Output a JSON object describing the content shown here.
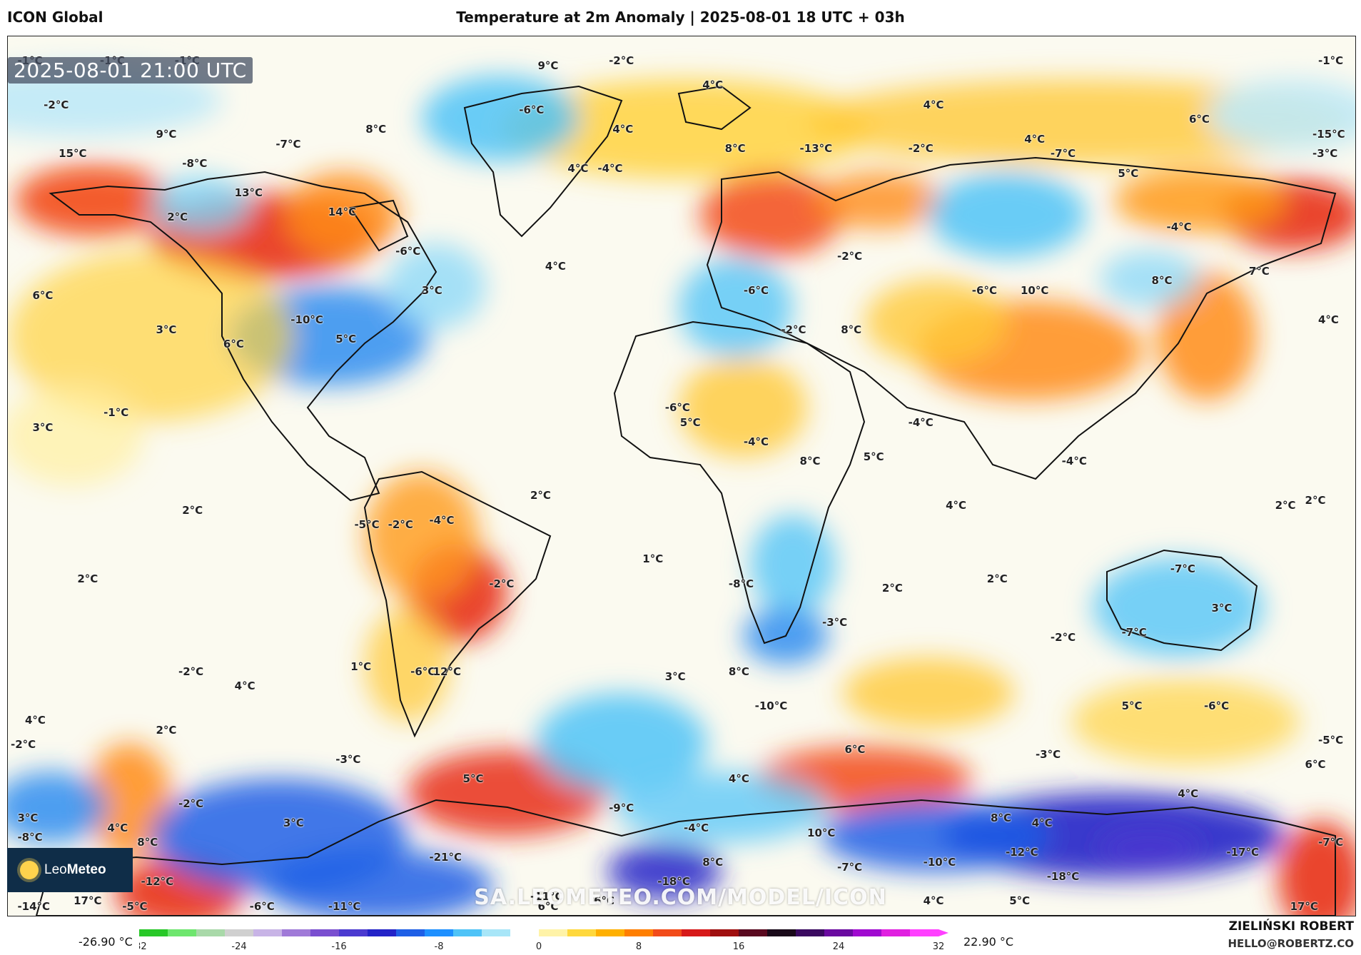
{
  "header": {
    "model": "ICON Global",
    "title": "Temperature at 2m Anomaly | 2025-08-01 18 UTC + 03h"
  },
  "map": {
    "valid_time": "2025-08-01 21:00 UTC",
    "watermark": "SA.LEOMETEO.COM/MODEL/ICON",
    "labels": [
      {
        "text": "-1°C",
        "lon": -174,
        "lat": 85
      },
      {
        "text": "-1°C",
        "lon": -152,
        "lat": 85
      },
      {
        "text": "-1°C",
        "lon": -132,
        "lat": 85
      },
      {
        "text": "-1°C",
        "lon": 174,
        "lat": 85
      },
      {
        "text": "-2°C",
        "lon": -167,
        "lat": 76
      },
      {
        "text": "9°C",
        "lon": -35,
        "lat": 84
      },
      {
        "text": "-2°C",
        "lon": -16,
        "lat": 85
      },
      {
        "text": "4°C",
        "lon": 9,
        "lat": 80
      },
      {
        "text": "-6°C",
        "lon": -40,
        "lat": 75
      },
      {
        "text": "4°C",
        "lon": 68,
        "lat": 76
      },
      {
        "text": "4°C",
        "lon": -15,
        "lat": 71
      },
      {
        "text": "4°C",
        "lon": -27,
        "lat": 63
      },
      {
        "text": "-4°C",
        "lon": -19,
        "lat": 63
      },
      {
        "text": "15°C",
        "lon": -163,
        "lat": 66
      },
      {
        "text": "9°C",
        "lon": -137,
        "lat": 70
      },
      {
        "text": "-8°C",
        "lon": -130,
        "lat": 64
      },
      {
        "text": "-7°C",
        "lon": -105,
        "lat": 68
      },
      {
        "text": "8°C",
        "lon": -81,
        "lat": 71
      },
      {
        "text": "13°C",
        "lon": -116,
        "lat": 58
      },
      {
        "text": "14°C",
        "lon": -91,
        "lat": 54
      },
      {
        "text": "2°C",
        "lon": -134,
        "lat": 53
      },
      {
        "text": "-6°C",
        "lon": -73,
        "lat": 46
      },
      {
        "text": "6°C",
        "lon": -170,
        "lat": 37
      },
      {
        "text": "3°C",
        "lon": -137,
        "lat": 30
      },
      {
        "text": "-10°C",
        "lon": -101,
        "lat": 32
      },
      {
        "text": "3°C",
        "lon": -66,
        "lat": 38
      },
      {
        "text": "6°C",
        "lon": -119,
        "lat": 27
      },
      {
        "text": "5°C",
        "lon": -89,
        "lat": 28
      },
      {
        "text": "4°C",
        "lon": -33,
        "lat": 43
      },
      {
        "text": "8°C",
        "lon": 15,
        "lat": 67
      },
      {
        "text": "-13°C",
        "lon": 35,
        "lat": 67
      },
      {
        "text": "-2°C",
        "lon": 64,
        "lat": 67
      },
      {
        "text": "4°C",
        "lon": 95,
        "lat": 69
      },
      {
        "text": "-7°C",
        "lon": 102,
        "lat": 66
      },
      {
        "text": "6°C",
        "lon": 139,
        "lat": 73
      },
      {
        "text": "-15°C",
        "lon": 172,
        "lat": 70
      },
      {
        "text": "-3°C",
        "lon": 172,
        "lat": 66
      },
      {
        "text": "5°C",
        "lon": 120,
        "lat": 62
      },
      {
        "text": "-4°C",
        "lon": 133,
        "lat": 51
      },
      {
        "text": "-2°C",
        "lon": 45,
        "lat": 45
      },
      {
        "text": "-6°C",
        "lon": 20,
        "lat": 38
      },
      {
        "text": "-6°C",
        "lon": 81,
        "lat": 38
      },
      {
        "text": "10°C",
        "lon": 94,
        "lat": 38
      },
      {
        "text": "8°C",
        "lon": 129,
        "lat": 40
      },
      {
        "text": "7°C",
        "lon": 155,
        "lat": 42
      },
      {
        "text": "4°C",
        "lon": 174,
        "lat": 32
      },
      {
        "text": "-2°C",
        "lon": 30,
        "lat": 30
      },
      {
        "text": "8°C",
        "lon": 46,
        "lat": 30
      },
      {
        "text": "-1°C",
        "lon": -151,
        "lat": 13
      },
      {
        "text": "3°C",
        "lon": -170,
        "lat": 10
      },
      {
        "text": "-6°C",
        "lon": -1,
        "lat": 14
      },
      {
        "text": "5°C",
        "lon": 3,
        "lat": 11
      },
      {
        "text": "-4°C",
        "lon": 20,
        "lat": 7
      },
      {
        "text": "8°C",
        "lon": 35,
        "lat": 3
      },
      {
        "text": "-4°C",
        "lon": 64,
        "lat": 11
      },
      {
        "text": "5°C",
        "lon": 52,
        "lat": 4
      },
      {
        "text": "4°C",
        "lon": 74,
        "lat": -6
      },
      {
        "text": "-4°C",
        "lon": 105,
        "lat": 3
      },
      {
        "text": "2°C",
        "lon": 170,
        "lat": -5
      },
      {
        "text": "2°C",
        "lon": 162,
        "lat": -6
      },
      {
        "text": "2°C",
        "lon": -130,
        "lat": -7
      },
      {
        "text": "-5°C",
        "lon": -84,
        "lat": -10
      },
      {
        "text": "-2°C",
        "lon": -75,
        "lat": -10
      },
      {
        "text": "-4°C",
        "lon": -64,
        "lat": -9
      },
      {
        "text": "2°C",
        "lon": -37,
        "lat": -4
      },
      {
        "text": "1°C",
        "lon": -7,
        "lat": -17
      },
      {
        "text": "2°C",
        "lon": -158,
        "lat": -21
      },
      {
        "text": "-2°C",
        "lon": -48,
        "lat": -22
      },
      {
        "text": "-8°C",
        "lon": 16,
        "lat": -22
      },
      {
        "text": "2°C",
        "lon": 57,
        "lat": -23
      },
      {
        "text": "2°C",
        "lon": 85,
        "lat": -21
      },
      {
        "text": "-7°C",
        "lon": 134,
        "lat": -19
      },
      {
        "text": "3°C",
        "lon": 145,
        "lat": -27
      },
      {
        "text": "-3°C",
        "lon": 41,
        "lat": -30
      },
      {
        "text": "-2°C",
        "lon": -131,
        "lat": -40
      },
      {
        "text": "4°C",
        "lon": -116,
        "lat": -43
      },
      {
        "text": "1°C",
        "lon": -85,
        "lat": -39
      },
      {
        "text": "-6°C",
        "lon": -69,
        "lat": -40
      },
      {
        "text": "12°C",
        "lon": -63,
        "lat": -40
      },
      {
        "text": "3°C",
        "lon": -1,
        "lat": -41
      },
      {
        "text": "8°C",
        "lon": 16,
        "lat": -40
      },
      {
        "text": "-10°C",
        "lon": 23,
        "lat": -47
      },
      {
        "text": "-2°C",
        "lon": 102,
        "lat": -33
      },
      {
        "text": "-7°C",
        "lon": 121,
        "lat": -32
      },
      {
        "text": "5°C",
        "lon": 121,
        "lat": -47
      },
      {
        "text": "-6°C",
        "lon": 143,
        "lat": -47
      },
      {
        "text": "-5°C",
        "lon": 175,
        "lat": -54
      },
      {
        "text": "6°C",
        "lon": 170,
        "lat": -59
      },
      {
        "text": "4°C",
        "lon": -172,
        "lat": -50
      },
      {
        "text": "2°C",
        "lon": -137,
        "lat": -52
      },
      {
        "text": "-2°C",
        "lon": -177,
        "lat": -55
      },
      {
        "text": "-3°C",
        "lon": -89,
        "lat": -58
      },
      {
        "text": "5°C",
        "lon": -55,
        "lat": -62
      },
      {
        "text": "4°C",
        "lon": 16,
        "lat": -62
      },
      {
        "text": "6°C",
        "lon": 47,
        "lat": -56
      },
      {
        "text": "-3°C",
        "lon": 98,
        "lat": -57
      },
      {
        "text": "4°C",
        "lon": 136,
        "lat": -65
      },
      {
        "text": "-2°C",
        "lon": -131,
        "lat": -67
      },
      {
        "text": "3°C",
        "lon": -174,
        "lat": -70
      },
      {
        "text": "3°C",
        "lon": -103,
        "lat": -71
      },
      {
        "text": "4°C",
        "lon": -150,
        "lat": -72
      },
      {
        "text": "8°C",
        "lon": -142,
        "lat": -75
      },
      {
        "text": "-8°C",
        "lon": -174,
        "lat": -74
      },
      {
        "text": "-9°C",
        "lon": -16,
        "lat": -68
      },
      {
        "text": "-4°C",
        "lon": 4,
        "lat": -72
      },
      {
        "text": "10°C",
        "lon": 37,
        "lat": -73
      },
      {
        "text": "8°C",
        "lon": 86,
        "lat": -70
      },
      {
        "text": "4°C",
        "lon": 97,
        "lat": -71
      },
      {
        "text": "-7°C",
        "lon": 175,
        "lat": -75
      },
      {
        "text": "-17°C",
        "lon": 149,
        "lat": -77
      },
      {
        "text": "-21°C",
        "lon": -64,
        "lat": -78
      },
      {
        "text": "8°C",
        "lon": 9,
        "lat": -79
      },
      {
        "text": "-7°C",
        "lon": 45,
        "lat": -80
      },
      {
        "text": "-10°C",
        "lon": 68,
        "lat": -79
      },
      {
        "text": "-12°C",
        "lon": 90,
        "lat": -77
      },
      {
        "text": "-18°C",
        "lon": 101,
        "lat": -82
      },
      {
        "text": "-12°C",
        "lon": -141,
        "lat": -83
      },
      {
        "text": "-18°C",
        "lon": -3,
        "lat": -83
      },
      {
        "text": "-11°C",
        "lon": -37,
        "lat": -86
      },
      {
        "text": "17°C",
        "lon": -159,
        "lat": -87
      },
      {
        "text": "6°C",
        "lon": -20,
        "lat": -87
      },
      {
        "text": "4°C",
        "lon": 68,
        "lat": -87
      },
      {
        "text": "5°C",
        "lon": 91,
        "lat": -87
      },
      {
        "text": "17°C",
        "lon": 166,
        "lat": -89
      },
      {
        "text": "-14°C",
        "lon": -174,
        "lat": -90
      },
      {
        "text": "-5°C",
        "lon": -146,
        "lat": -90
      },
      {
        "text": "-6°C",
        "lon": -112,
        "lat": -90
      },
      {
        "text": "-11°C",
        "lon": -91,
        "lat": -90
      },
      {
        "text": "6°C",
        "lon": -35,
        "lat": -89
      }
    ]
  },
  "branding": {
    "logo_text_light": "Leo",
    "logo_text_bold": "Meteo",
    "author": "ZIELIŃSKI ROBERT",
    "email": "HELLO@ROBERTZ.CO"
  },
  "scale": {
    "min_label": "-26.90 °C",
    "max_label": "22.90 °C",
    "ticks": [
      "-32",
      "-24",
      "-16",
      "-8",
      "0",
      "8",
      "16",
      "24",
      "32"
    ],
    "range": [
      -32,
      32
    ]
  },
  "colors": {
    "colorbar": [
      "#28c828",
      "#6ee66e",
      "#a9d9a9",
      "#d0d0d0",
      "#c8b4e6",
      "#a07ad8",
      "#7a4fd0",
      "#4b3ad0",
      "#2323c8",
      "#1f5fe6",
      "#1e90ff",
      "#4fc3f7",
      "#a8e6f8",
      "#ffffff",
      "#fff3a8",
      "#ffd83d",
      "#ffb000",
      "#ff7f00",
      "#f24b1a",
      "#d71a1a",
      "#a00f0f",
      "#5a0a20",
      "#1a0a1a",
      "#3a0a60",
      "#6a0aa0",
      "#a00ad0",
      "#e020e0",
      "#ff40ff"
    ]
  }
}
